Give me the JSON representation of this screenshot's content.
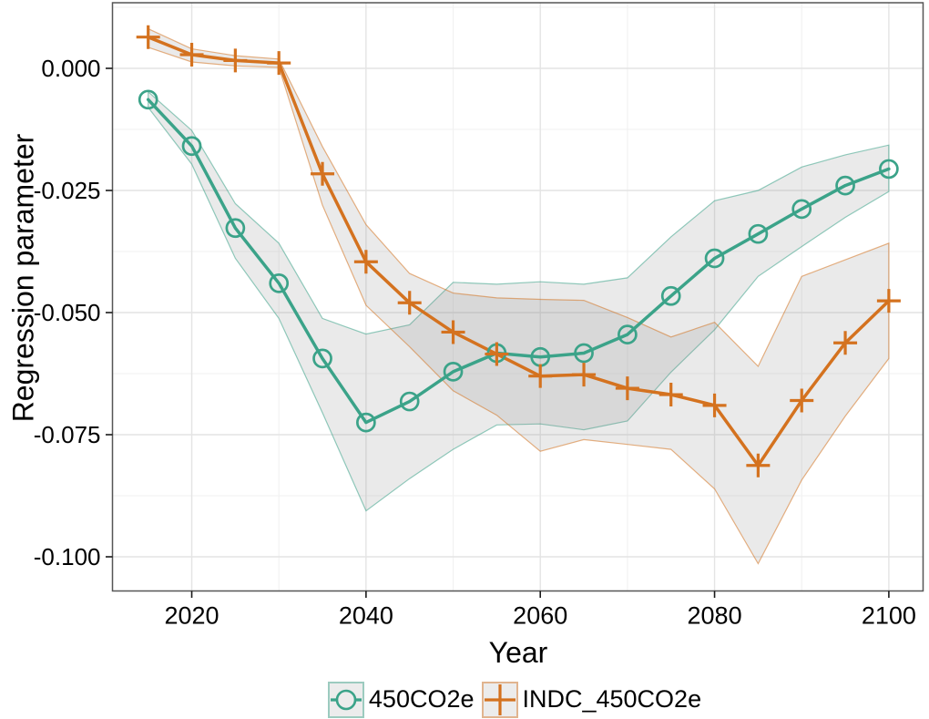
{
  "chart_data": {
    "type": "line",
    "title": "",
    "xlabel": "Year",
    "ylabel": "Regression parameter",
    "x": [
      2015,
      2020,
      2025,
      2030,
      2035,
      2040,
      2045,
      2050,
      2055,
      2060,
      2065,
      2070,
      2075,
      2080,
      2085,
      2090,
      2095,
      2100
    ],
    "xlim": [
      2010.75,
      2104.25
    ],
    "ylim": [
      -0.1069,
      0.0134
    ],
    "x_ticks": [
      2020,
      2040,
      2060,
      2080,
      2100
    ],
    "x_tick_labels": [
      "2020",
      "2040",
      "2060",
      "2080",
      "2100"
    ],
    "x_minor_ticks": [
      2030,
      2050,
      2070,
      2090
    ],
    "y_ticks": [
      0.0,
      -0.025,
      -0.05,
      -0.075,
      -0.1
    ],
    "y_tick_labels": [
      "0.000",
      "-0.025",
      "-0.050",
      "-0.075",
      "-0.100"
    ],
    "y_minor_ticks": [
      0.0125,
      -0.0125,
      -0.0375,
      -0.0625,
      -0.0875
    ],
    "grid": "major+minor",
    "legend_position": "bottom",
    "band_fill": "#8c8c8c",
    "band_opacity": 0.18,
    "colors": {
      "grid_major": "#e4e4e4",
      "grid_minor": "#f1f1f1",
      "panel_border": "#555555",
      "tick": "#1a1a1a",
      "text": "#000000",
      "legend_key_bg": "#ececec"
    },
    "series": [
      {
        "name": "450CO2e",
        "color": "#3ba389",
        "marker": "circle",
        "values": [
          -0.0064,
          -0.0159,
          -0.0327,
          -0.044,
          -0.0594,
          -0.0725,
          -0.0682,
          -0.0621,
          -0.0583,
          -0.0591,
          -0.0583,
          -0.0545,
          -0.0466,
          -0.0389,
          -0.0339,
          -0.0288,
          -0.024,
          -0.0206
        ],
        "band_upper": [
          -0.0048,
          -0.0127,
          -0.0277,
          -0.0358,
          -0.0512,
          -0.0544,
          -0.0525,
          -0.0438,
          -0.0442,
          -0.0437,
          -0.0442,
          -0.0429,
          -0.0345,
          -0.0271,
          -0.025,
          -0.0202,
          -0.0177,
          -0.0157
        ],
        "band_lower": [
          -0.008,
          -0.0196,
          -0.0389,
          -0.0512,
          -0.0705,
          -0.0906,
          -0.084,
          -0.078,
          -0.073,
          -0.0728,
          -0.074,
          -0.0722,
          -0.0622,
          -0.0535,
          -0.0426,
          -0.0365,
          -0.0305,
          -0.0252
        ]
      },
      {
        "name": "INDC_450CO2e",
        "color": "#d4721f",
        "marker": "plus",
        "values": [
          0.0064,
          0.0028,
          0.0016,
          0.0011,
          -0.0216,
          -0.0396,
          -0.048,
          -0.054,
          -0.0585,
          -0.063,
          -0.0627,
          -0.0655,
          -0.0668,
          -0.069,
          -0.0813,
          -0.068,
          -0.0562,
          -0.0476
        ],
        "band_upper": [
          0.0081,
          0.004,
          0.0026,
          0.0019,
          -0.016,
          -0.032,
          -0.042,
          -0.046,
          -0.047,
          -0.0473,
          -0.0475,
          -0.051,
          -0.055,
          -0.052,
          -0.061,
          -0.0426,
          -0.0392,
          -0.0358
        ],
        "band_lower": [
          0.0043,
          0.0013,
          0.0005,
          0.0002,
          -0.028,
          -0.0485,
          -0.057,
          -0.066,
          -0.071,
          -0.0784,
          -0.076,
          -0.077,
          -0.078,
          -0.0861,
          -0.1014,
          -0.0843,
          -0.0712,
          -0.0594
        ]
      }
    ]
  }
}
